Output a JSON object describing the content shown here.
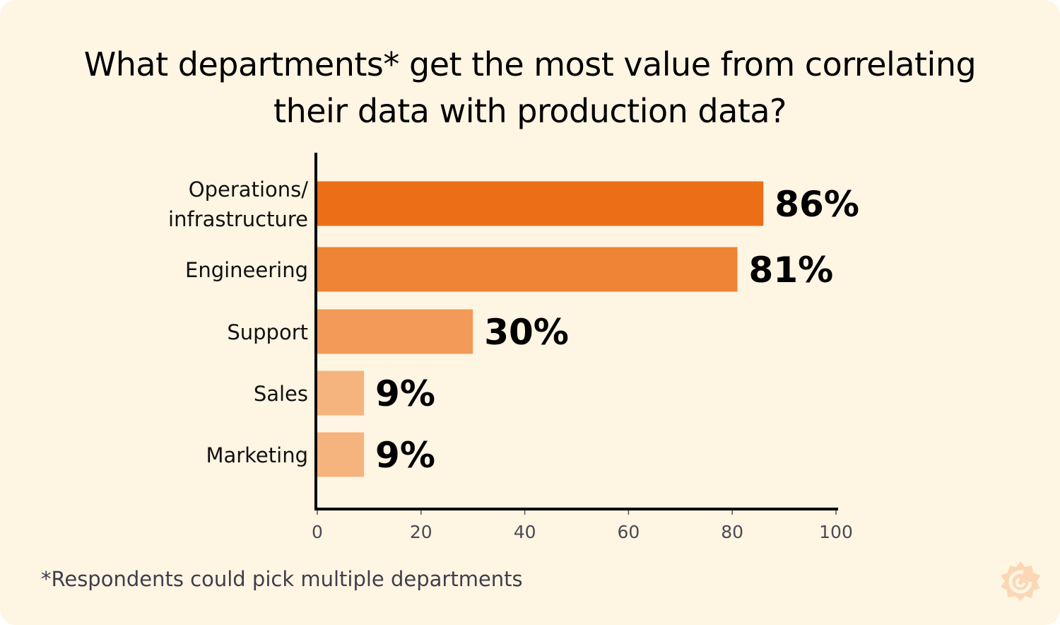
{
  "title_line1": "What departments* get the most value from correlating",
  "title_line2": "their data with production data?",
  "footnote": "*Respondents could pick multiple departments",
  "chart_data": {
    "type": "bar",
    "orientation": "horizontal",
    "categories": [
      [
        "Operations/",
        "infrastructure"
      ],
      [
        "Engineering"
      ],
      [
        "Support"
      ],
      [
        "Sales"
      ],
      [
        "Marketing"
      ]
    ],
    "values": [
      86,
      81,
      30,
      9,
      9
    ],
    "data_labels": [
      "86%",
      "81%",
      "30%",
      "9%",
      "9%"
    ],
    "colors": [
      "#EC6E17",
      "#EF8336",
      "#F29A57",
      "#F5B47E",
      "#F5B47E"
    ],
    "xlim": [
      0,
      100
    ],
    "xticks": [
      "0",
      "20",
      "40",
      "60",
      "80",
      "100"
    ],
    "grid": false,
    "xlabel": "",
    "ylabel": ""
  },
  "logo_icon": "grafana-logo-icon"
}
